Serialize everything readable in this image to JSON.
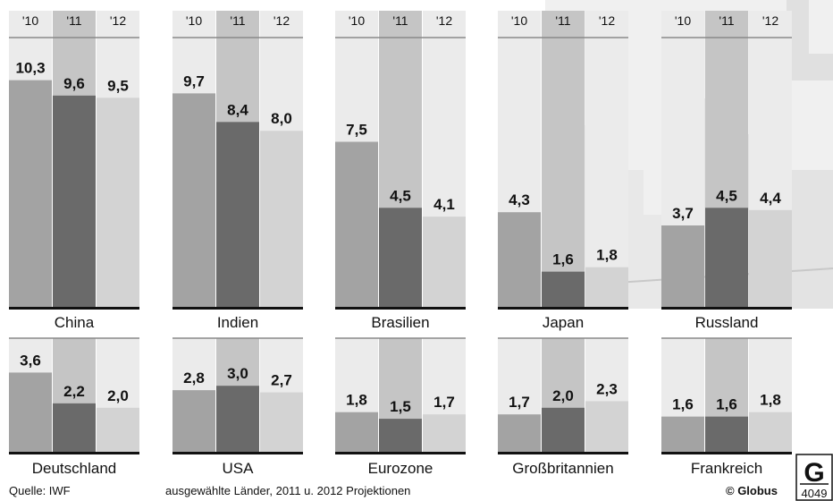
{
  "chart_data": {
    "type": "bar",
    "series": [
      {
        "name": "'10",
        "color": "#a3a3a3"
      },
      {
        "name": "'11",
        "color": "#6a6a6a"
      },
      {
        "name": "'12",
        "color": "#d3d3d3"
      }
    ],
    "panels": [
      {
        "label": "China",
        "values": [
          10.3,
          9.6,
          9.5
        ],
        "display": [
          "10,3",
          "9,6",
          "9,5"
        ]
      },
      {
        "label": "Indien",
        "values": [
          9.7,
          8.4,
          8.0
        ],
        "display": [
          "9,7",
          "8,4",
          "8,0"
        ]
      },
      {
        "label": "Brasilien",
        "values": [
          7.5,
          4.5,
          4.1
        ],
        "display": [
          "7,5",
          "4,5",
          "4,1"
        ]
      },
      {
        "label": "Japan",
        "values": [
          4.3,
          1.6,
          1.8
        ],
        "display": [
          "4,3",
          "1,6",
          "1,8"
        ]
      },
      {
        "label": "Russland",
        "values": [
          3.7,
          4.5,
          4.4
        ],
        "display": [
          "3,7",
          "4,5",
          "4,4"
        ]
      },
      {
        "label": "Deutschland",
        "values": [
          3.6,
          2.2,
          2.0
        ],
        "display": [
          "3,6",
          "2,2",
          "2,0"
        ]
      },
      {
        "label": "USA",
        "values": [
          2.8,
          3.0,
          2.7
        ],
        "display": [
          "2,8",
          "3,0",
          "2,7"
        ]
      },
      {
        "label": "Eurozone",
        "values": [
          1.8,
          1.5,
          1.7
        ],
        "display": [
          "1,8",
          "1,5",
          "1,7"
        ]
      },
      {
        "label": "Großbritannien",
        "values": [
          1.7,
          2.0,
          2.3
        ],
        "display": [
          "1,7",
          "2,0",
          "2,3"
        ]
      },
      {
        "label": "Frankreich",
        "values": [
          1.6,
          1.6,
          1.8
        ],
        "display": [
          "1,6",
          "1,6",
          "1,8"
        ]
      }
    ],
    "year_labels": [
      "'10",
      "'11",
      "'12"
    ]
  },
  "footer": {
    "source": "Quelle: IWF",
    "note": "ausgewählte Länder, 2011 u. 2012 Projektionen",
    "brand": "© Globus",
    "logo_letter": "G",
    "graphic_number": "4049"
  }
}
